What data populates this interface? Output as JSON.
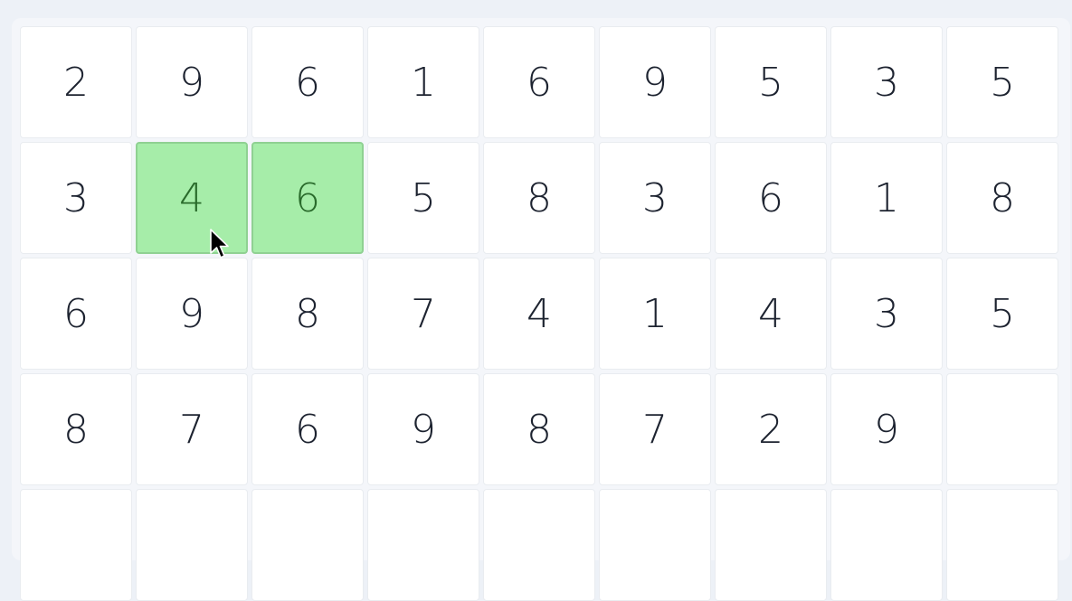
{
  "board": {
    "rows": [
      [
        {
          "value": "2",
          "selected": false
        },
        {
          "value": "9",
          "selected": false
        },
        {
          "value": "6",
          "selected": false
        },
        {
          "value": "1",
          "selected": false
        },
        {
          "value": "6",
          "selected": false
        },
        {
          "value": "9",
          "selected": false
        },
        {
          "value": "5",
          "selected": false
        },
        {
          "value": "3",
          "selected": false
        },
        {
          "value": "5",
          "selected": false
        }
      ],
      [
        {
          "value": "3",
          "selected": false
        },
        {
          "value": "4",
          "selected": true
        },
        {
          "value": "6",
          "selected": true
        },
        {
          "value": "5",
          "selected": false
        },
        {
          "value": "8",
          "selected": false
        },
        {
          "value": "3",
          "selected": false
        },
        {
          "value": "6",
          "selected": false
        },
        {
          "value": "1",
          "selected": false
        },
        {
          "value": "8",
          "selected": false
        }
      ],
      [
        {
          "value": "6",
          "selected": false
        },
        {
          "value": "9",
          "selected": false
        },
        {
          "value": "8",
          "selected": false
        },
        {
          "value": "7",
          "selected": false
        },
        {
          "value": "4",
          "selected": false
        },
        {
          "value": "1",
          "selected": false
        },
        {
          "value": "4",
          "selected": false
        },
        {
          "value": "3",
          "selected": false
        },
        {
          "value": "5",
          "selected": false
        }
      ],
      [
        {
          "value": "8",
          "selected": false
        },
        {
          "value": "7",
          "selected": false
        },
        {
          "value": "6",
          "selected": false
        },
        {
          "value": "9",
          "selected": false
        },
        {
          "value": "8",
          "selected": false
        },
        {
          "value": "7",
          "selected": false
        },
        {
          "value": "2",
          "selected": false
        },
        {
          "value": "9",
          "selected": false
        },
        {
          "value": "",
          "selected": false
        }
      ],
      [
        {
          "value": "",
          "selected": false
        },
        {
          "value": "",
          "selected": false
        },
        {
          "value": "",
          "selected": false
        },
        {
          "value": "",
          "selected": false
        },
        {
          "value": "",
          "selected": false
        },
        {
          "value": "",
          "selected": false
        },
        {
          "value": "",
          "selected": false
        },
        {
          "value": "",
          "selected": false
        },
        {
          "value": "",
          "selected": false
        }
      ]
    ]
  },
  "colors": {
    "selected_fill": "#a6eda9",
    "selected_text": "#2a6b2c",
    "cell_fill": "#ffffff",
    "text": "#1d2330"
  },
  "icons": {
    "cursor": "mouse-pointer-icon"
  }
}
